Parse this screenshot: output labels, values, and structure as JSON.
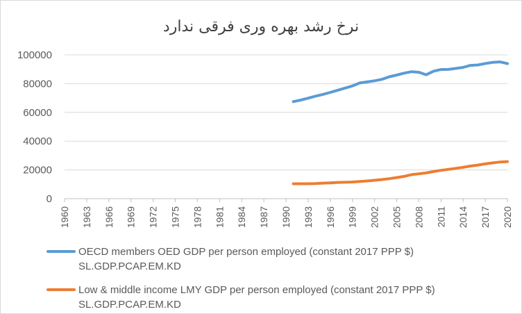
{
  "chart_data": {
    "type": "line",
    "title": "نرخ رشد بهره وری فرقی ندارد",
    "xlabel": "",
    "ylabel": "",
    "ylim": [
      0,
      100000
    ],
    "yticks": [
      0,
      20000,
      40000,
      60000,
      80000,
      100000
    ],
    "xticks": [
      1960,
      1963,
      1966,
      1969,
      1972,
      1975,
      1978,
      1981,
      1984,
      1987,
      1990,
      1993,
      1996,
      1999,
      2002,
      2005,
      2008,
      2011,
      2014,
      2017,
      2020
    ],
    "xlim": [
      1960,
      2020
    ],
    "grid": true,
    "legend_position": "bottom",
    "series": [
      {
        "name": "OECD members OED GDP per person employed (constant 2017 PPP $) SL.GDP.PCAP.EM.KD",
        "color": "#5b9bd5",
        "x": [
          1991,
          1992,
          1993,
          1994,
          1995,
          1996,
          1997,
          1998,
          1999,
          2000,
          2001,
          2002,
          2003,
          2004,
          2005,
          2006,
          2007,
          2008,
          2009,
          2010,
          2011,
          2012,
          2013,
          2014,
          2015,
          2016,
          2017,
          2018,
          2019,
          2020
        ],
        "values": [
          67500,
          68600,
          69900,
          71300,
          72500,
          73900,
          75400,
          76900,
          78400,
          80500,
          81200,
          82000,
          83000,
          84800,
          86000,
          87300,
          88300,
          87900,
          86200,
          88700,
          89800,
          89900,
          90600,
          91300,
          92700,
          93000,
          94000,
          94800,
          95100,
          93900
        ]
      },
      {
        "name": "Low & middle income LMY GDP per person employed (constant 2017 PPP $) SL.GDP.PCAP.EM.KD",
        "color": "#ed7d31",
        "x": [
          1991,
          1992,
          1993,
          1994,
          1995,
          1996,
          1997,
          1998,
          1999,
          2000,
          2001,
          2002,
          2003,
          2004,
          2005,
          2006,
          2007,
          2008,
          2009,
          2010,
          2011,
          2012,
          2013,
          2014,
          2015,
          2016,
          2017,
          2018,
          2019,
          2020
        ],
        "values": [
          10400,
          10400,
          10400,
          10500,
          10800,
          11000,
          11300,
          11400,
          11600,
          12000,
          12300,
          12800,
          13300,
          13900,
          14700,
          15500,
          16700,
          17300,
          17900,
          18900,
          19700,
          20400,
          21100,
          21800,
          22700,
          23400,
          24200,
          24900,
          25500,
          25800
        ]
      }
    ]
  }
}
